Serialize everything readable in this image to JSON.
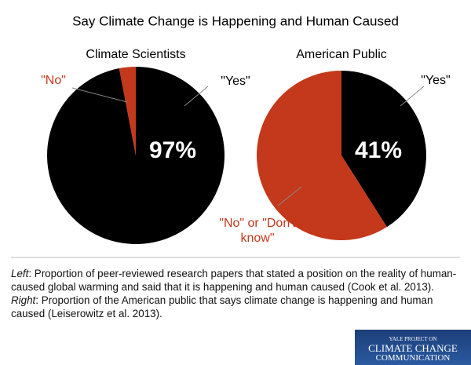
{
  "title": "Say Climate Change is Happening and Human Caused",
  "chart_data": [
    {
      "type": "pie",
      "title": "Climate Scientists",
      "categories": [
        "\"Yes\"",
        "\"No\""
      ],
      "values": [
        97,
        3
      ],
      "value_labels": [
        "97%",
        null
      ],
      "colors": [
        "#000000",
        "#c4381b"
      ]
    },
    {
      "type": "pie",
      "title": "American Public",
      "categories": [
        "\"Yes\"",
        "\"No\" or \"Don't know\""
      ],
      "values": [
        41,
        59
      ],
      "value_labels": [
        "41%",
        null
      ],
      "colors": [
        "#000000",
        "#c4381b"
      ]
    }
  ],
  "caption": [
    "Left",
    ": Proportion of peer-reviewed research papers that stated a position on the reality of human-caused global warming and said that it is happening and human caused (Cook et al. 2013). ",
    "Right",
    ": Proportion of the American public that says climate change is happening and human caused (Leiserowitz et al. 2013)."
  ],
  "logo": [
    "YALE PROJECT ON",
    "CLIMATE CHANGE",
    "COMMUNICATION"
  ]
}
